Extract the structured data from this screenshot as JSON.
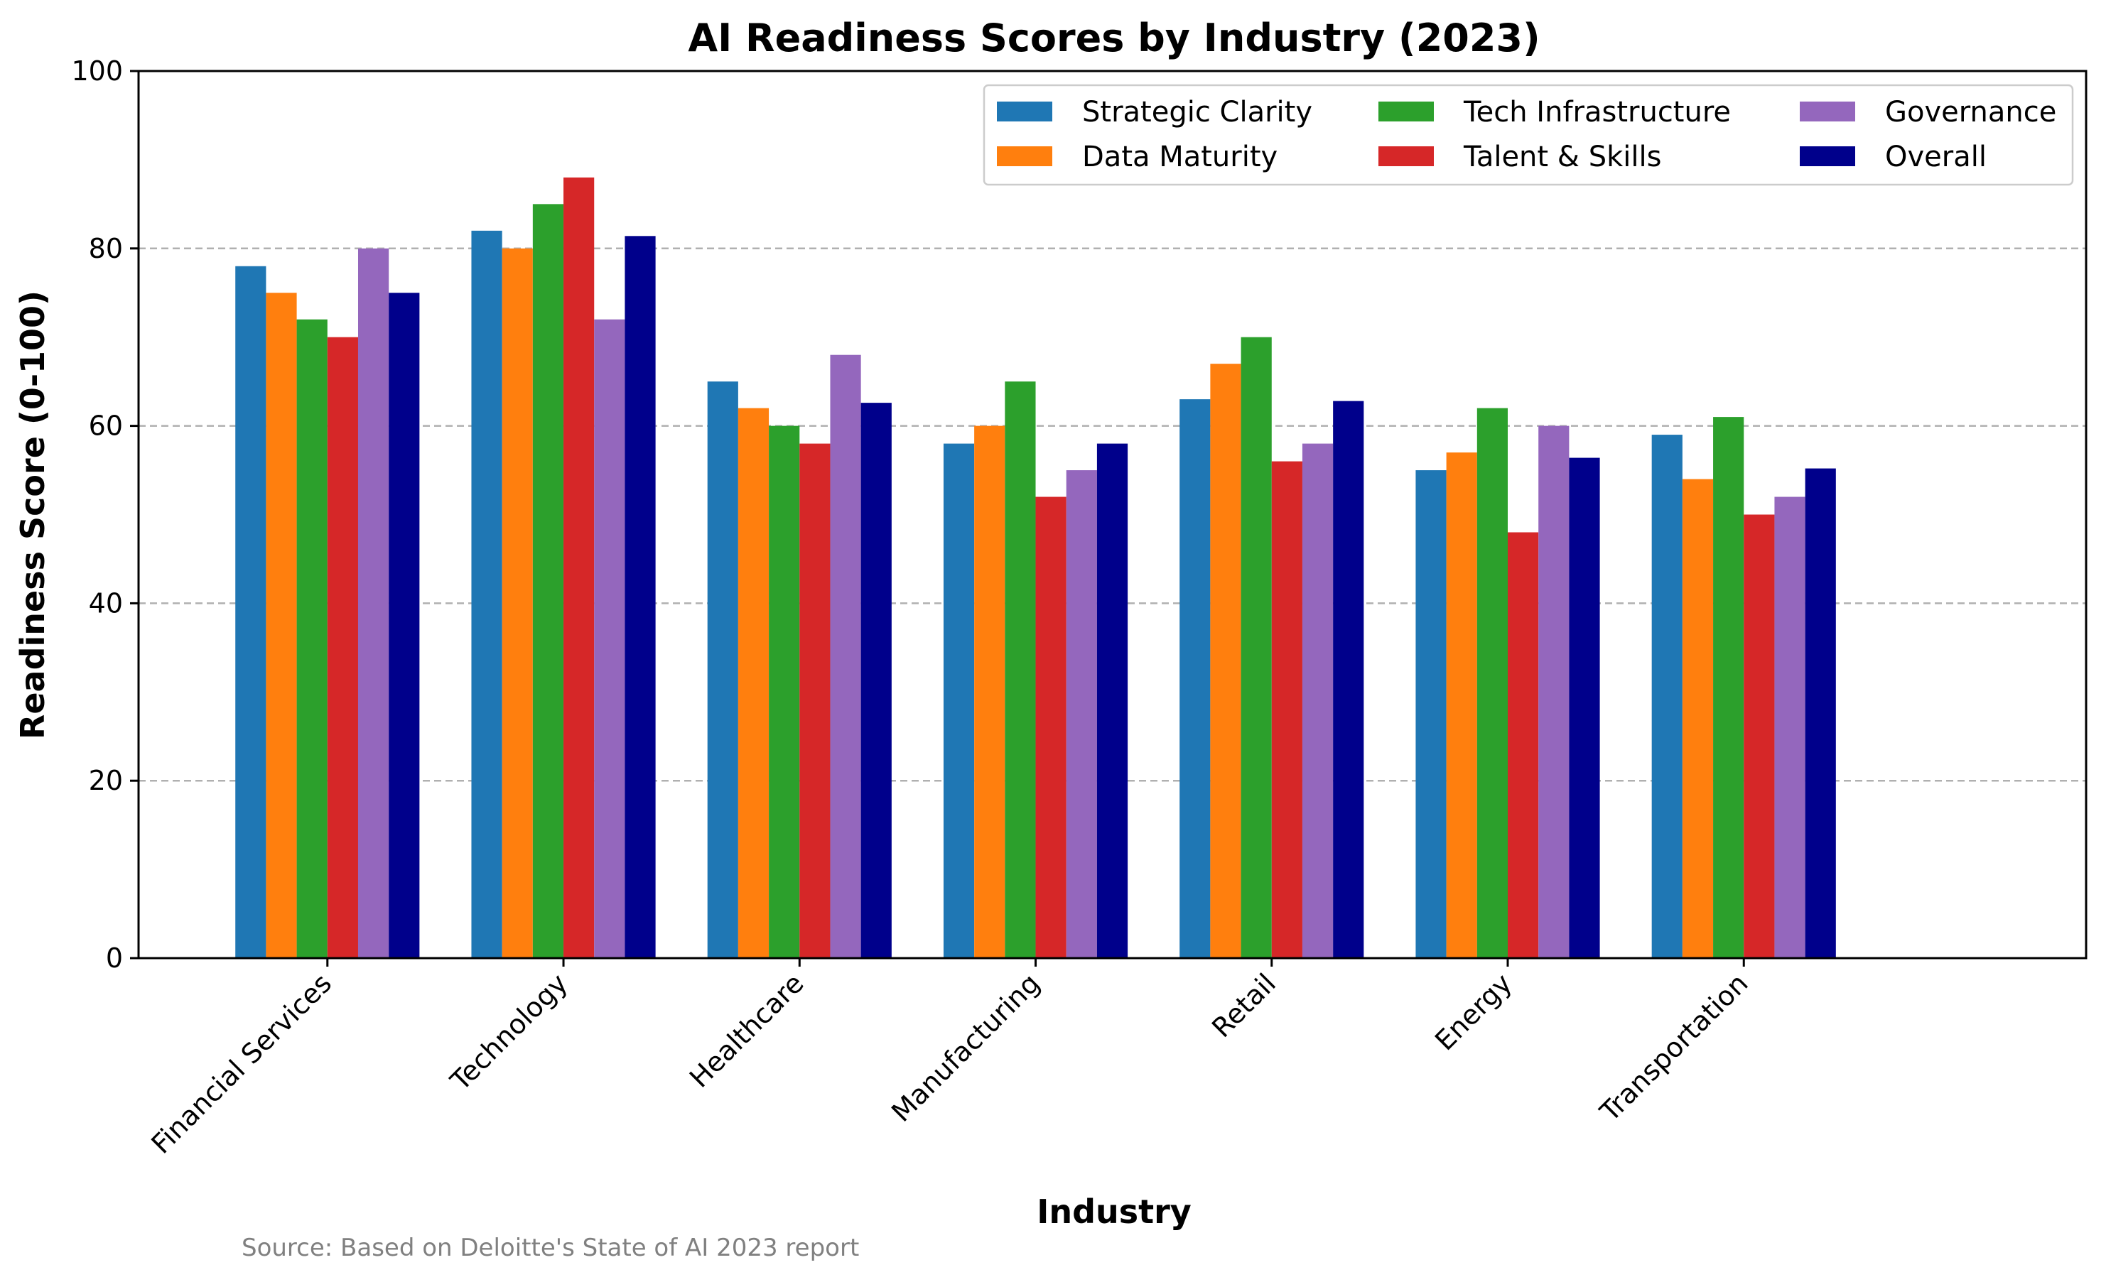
{
  "chart_data": {
    "type": "bar",
    "title": "AI Readiness Scores by Industry (2023)",
    "xlabel": "Industry",
    "ylabel": "Readiness Score (0-100)",
    "ylim": [
      0,
      100
    ],
    "yticks": [
      "0",
      "20",
      "40",
      "60",
      "80",
      "100"
    ],
    "grid": "horizontal dashed",
    "legend_position": "top-right",
    "categories": [
      "Financial Services",
      "Technology",
      "Healthcare",
      "Manufacturing",
      "Retail",
      "Energy",
      "Transportation"
    ],
    "series": [
      {
        "name": "Strategic Clarity",
        "color": "#1f77b4",
        "values": [
          78,
          82,
          65,
          58,
          63,
          55,
          59
        ]
      },
      {
        "name": "Data Maturity",
        "color": "#ff7f0e",
        "values": [
          75,
          80,
          62,
          60,
          67,
          57,
          54
        ]
      },
      {
        "name": "Tech Infrastructure",
        "color": "#2ca02c",
        "values": [
          72,
          85,
          60,
          65,
          70,
          62,
          61
        ]
      },
      {
        "name": "Talent & Skills",
        "color": "#d62728",
        "values": [
          70,
          88,
          58,
          52,
          56,
          48,
          50
        ]
      },
      {
        "name": "Governance",
        "color": "#9467bd",
        "values": [
          80,
          72,
          68,
          55,
          58,
          60,
          52
        ]
      },
      {
        "name": "Overall",
        "color": "#00008b",
        "values": [
          75,
          81.4,
          62.6,
          58,
          62.8,
          56.4,
          55.2
        ]
      }
    ],
    "source_note": "Source: Based on Deloitte's State of AI 2023 report"
  }
}
